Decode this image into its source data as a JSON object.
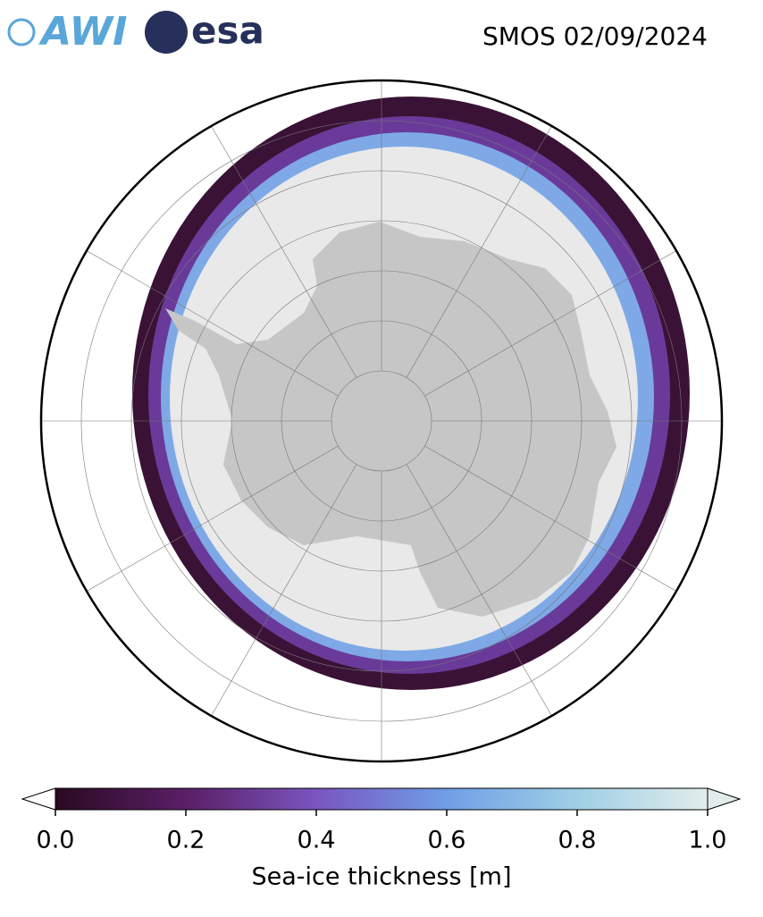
{
  "header": {
    "logos": [
      "AWI",
      "esa"
    ],
    "title": "SMOS 02/09/2024"
  },
  "colorbar": {
    "label": "Sea-ice thickness [m]",
    "lim": [
      0,
      1
    ],
    "ticks": [
      {
        "value": 0,
        "label": "0.0"
      },
      {
        "value": 0.2,
        "label": "0.2"
      },
      {
        "value": 0.4,
        "label": "0.4"
      },
      {
        "value": 0.6,
        "label": "0.6"
      },
      {
        "value": 0.8,
        "label": "0.8"
      },
      {
        "value": 1,
        "label": "1.0"
      }
    ],
    "colors": [
      "#2a0a22",
      "#5a1f66",
      "#7a55c0",
      "#6f9ee6",
      "#9fcfe6",
      "#e2ecea"
    ]
  }
}
